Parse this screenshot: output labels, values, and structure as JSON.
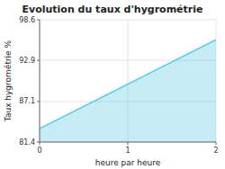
{
  "chart_data": {
    "type": "area",
    "title": "Evolution du taux d'hygrométrie",
    "x_label": "heure par heure",
    "y_label": "Taux hygrométrie %",
    "x": [
      0,
      2
    ],
    "values": [
      83.3,
      95.8
    ],
    "color": "#5bc8e8",
    "xlim": [
      0,
      2
    ],
    "ylim": [
      81.4,
      98.6
    ],
    "xticks": [
      0,
      1,
      2
    ],
    "yticks": [
      81.4,
      87.1,
      92.9,
      98.6
    ],
    "grid": true
  }
}
